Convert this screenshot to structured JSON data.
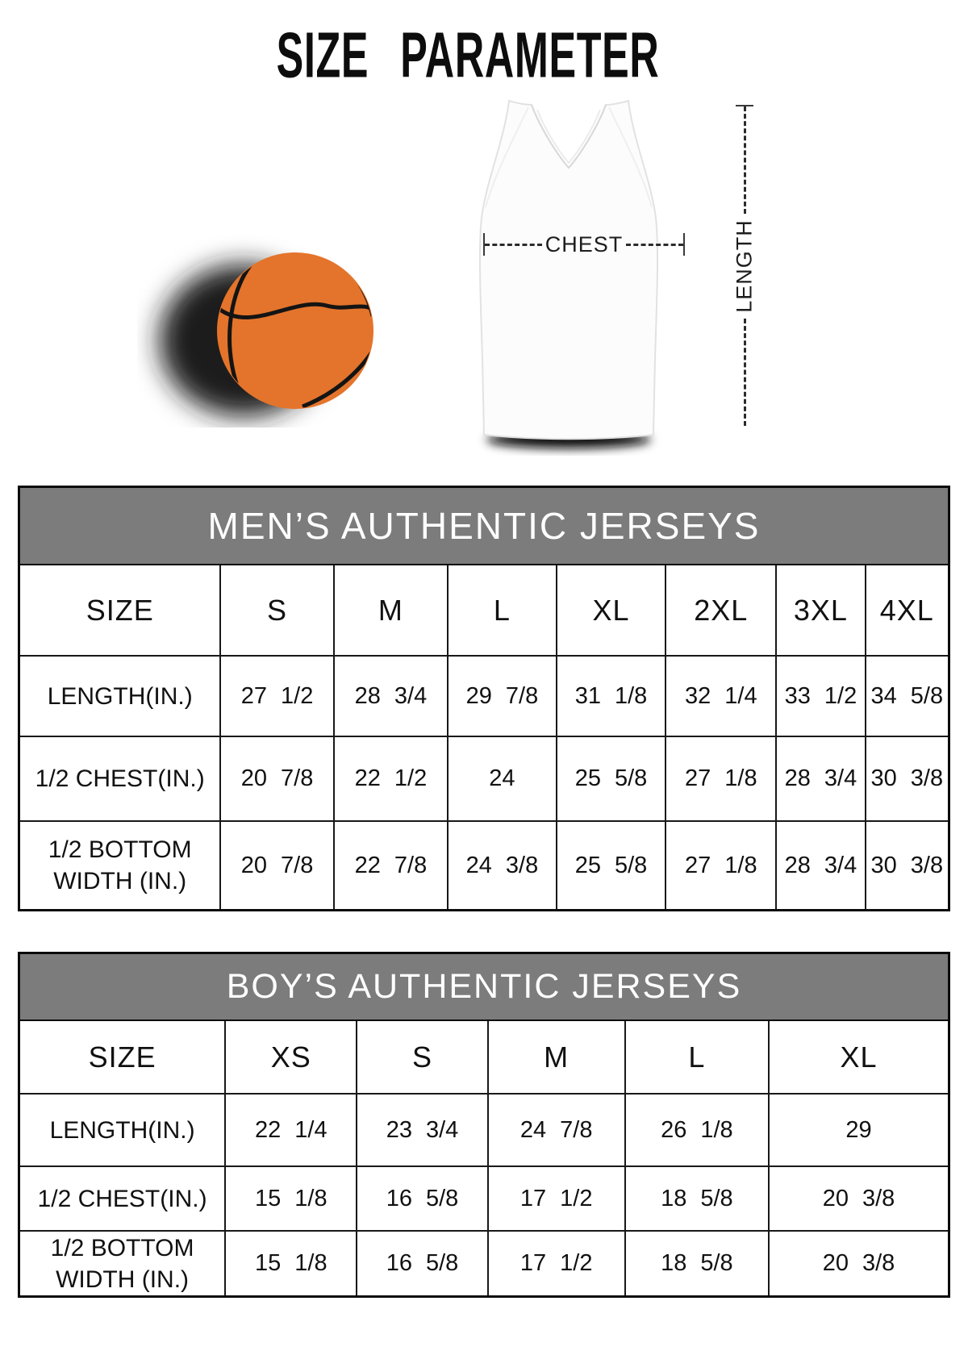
{
  "title": "SIZE PARAMETER",
  "diagram": {
    "chest_label": "CHEST",
    "length_label": "LENGTH"
  },
  "colors": {
    "band_gray": "#7c7c7c",
    "basketball_orange": "#e4742b",
    "border_black": "#0b0b0b"
  },
  "tables": [
    {
      "id": "mens",
      "title": "MEN’S AUTHENTIC JERSEYS",
      "columns": [
        "SIZE",
        "S",
        "M",
        "L",
        "XL",
        "2XL",
        "3XL",
        "4XL"
      ],
      "rows": [
        {
          "label": "LENGTH(IN.)",
          "values": [
            "27 1/2",
            "28 3/4",
            "29 7/8",
            "31 1/8",
            "32 1/4",
            "33 1/2",
            "34 5/8"
          ]
        },
        {
          "label": "1/2 CHEST(IN.)",
          "values": [
            "20 7/8",
            "22 1/2",
            "24",
            "25 5/8",
            "27 1/8",
            "28 3/4",
            "30 3/8"
          ]
        },
        {
          "label": "1/2 BOTTOM WIDTH (IN.)",
          "values": [
            "20 7/8",
            "22 7/8",
            "24 3/8",
            "25 5/8",
            "27 1/8",
            "28 3/4",
            "30 3/8"
          ]
        }
      ]
    },
    {
      "id": "boys",
      "title": "BOY’S AUTHENTIC JERSEYS",
      "columns": [
        "SIZE",
        "XS",
        "S",
        "M",
        "L",
        "XL"
      ],
      "rows": [
        {
          "label": "LENGTH(IN.)",
          "values": [
            "22 1/4",
            "23 3/4",
            "24 7/8",
            "26 1/8",
            "29"
          ]
        },
        {
          "label": "1/2 CHEST(IN.)",
          "values": [
            "15 1/8",
            "16 5/8",
            "17 1/2",
            "18 5/8",
            "20 3/8"
          ]
        },
        {
          "label": "1/2 BOTTOM WIDTH (IN.)",
          "values": [
            "15 1/8",
            "16 5/8",
            "17 1/2",
            "18 5/8",
            "20 3/8"
          ]
        }
      ]
    }
  ]
}
